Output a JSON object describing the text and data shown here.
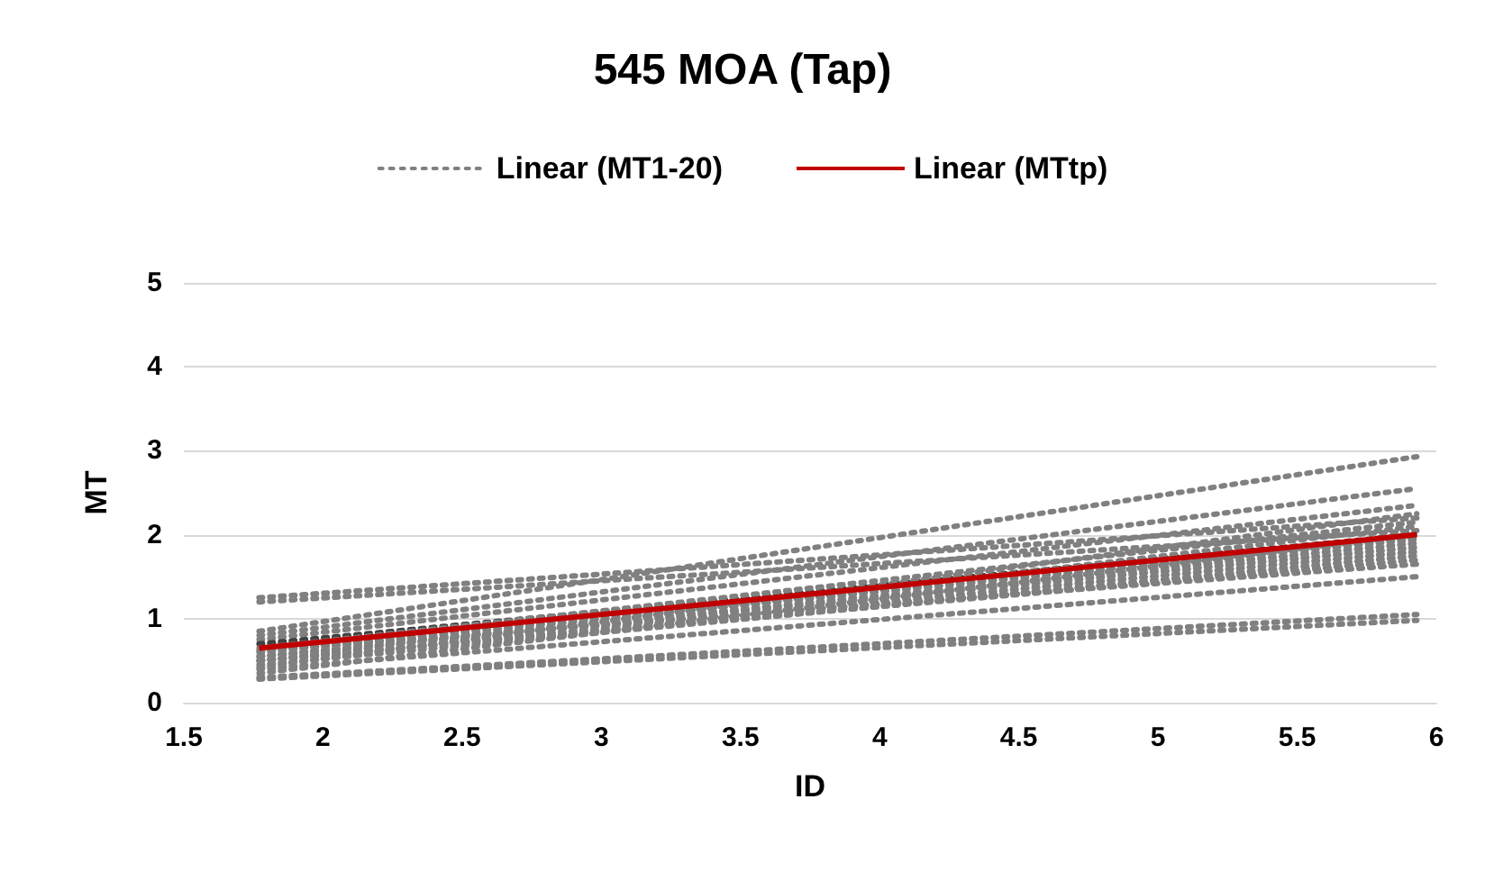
{
  "chart_data": {
    "type": "line",
    "title": "545 MOA (Tap)",
    "xlabel": "ID",
    "ylabel": "MT",
    "x": [
      1.77,
      5.93
    ],
    "xlim": [
      1.5,
      6
    ],
    "xticks": [
      1.5,
      2,
      2.5,
      3,
      3.5,
      4,
      4.5,
      5,
      5.5,
      6
    ],
    "ylim": [
      0,
      5
    ],
    "yticks": [
      0,
      1,
      2,
      3,
      4,
      5
    ],
    "grid": "y",
    "legend": "top",
    "marker": "none",
    "series": [
      {
        "name": "Linear (MT1-20)",
        "color": "#808080",
        "line_style": "dotted",
        "values": [
          1.25,
          2.2
        ]
      },
      {
        "color": "#808080",
        "line_style": "dotted",
        "values": [
          1.2,
          2.05
        ]
      },
      {
        "color": "#808080",
        "line_style": "dotted",
        "values": [
          0.85,
          2.93
        ]
      },
      {
        "color": "#808080",
        "line_style": "dotted",
        "values": [
          0.8,
          2.55
        ]
      },
      {
        "color": "#808080",
        "line_style": "dotted",
        "values": [
          0.75,
          2.35
        ]
      },
      {
        "color": "#404040",
        "line_style": "dotted",
        "values": [
          0.7,
          2.0
        ]
      },
      {
        "color": "#808080",
        "line_style": "dotted",
        "values": [
          0.65,
          2.15
        ]
      },
      {
        "color": "#808080",
        "line_style": "dotted",
        "values": [
          0.6,
          1.95
        ]
      },
      {
        "color": "#808080",
        "line_style": "dotted",
        "values": [
          0.55,
          1.9
        ]
      },
      {
        "color": "#808080",
        "line_style": "dotted",
        "values": [
          0.55,
          1.85
        ]
      },
      {
        "color": "#808080",
        "line_style": "dotted",
        "values": [
          0.5,
          1.8
        ]
      },
      {
        "color": "#808080",
        "line_style": "dotted",
        "values": [
          0.5,
          2.1
        ]
      },
      {
        "color": "#808080",
        "line_style": "dotted",
        "values": [
          0.45,
          1.75
        ]
      },
      {
        "color": "#808080",
        "line_style": "dotted",
        "values": [
          0.42,
          2.25
        ]
      },
      {
        "color": "#808080",
        "line_style": "dotted",
        "values": [
          0.4,
          1.5
        ]
      },
      {
        "color": "#808080",
        "line_style": "dotted",
        "values": [
          0.35,
          2.0
        ]
      },
      {
        "color": "#808080",
        "line_style": "dotted",
        "values": [
          0.3,
          1.05
        ]
      },
      {
        "color": "#808080",
        "line_style": "dotted",
        "values": [
          0.28,
          0.98
        ]
      },
      {
        "color": "#808080",
        "line_style": "dotted",
        "values": [
          0.62,
          1.65
        ]
      },
      {
        "color": "#808080",
        "line_style": "dotted",
        "values": [
          0.5,
          1.7
        ]
      },
      {
        "name": "Linear (MTtp)",
        "color": "#c00000",
        "line_style": "solid",
        "values": [
          0.65,
          2.0
        ]
      }
    ]
  }
}
